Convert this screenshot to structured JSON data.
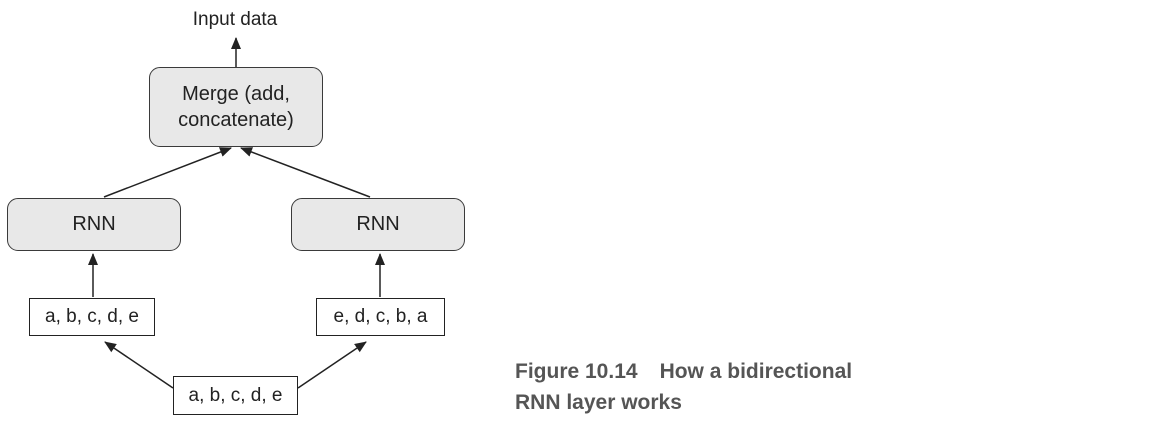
{
  "diagram": {
    "output_label": "Input data",
    "merge_label_line1": "Merge (add,",
    "merge_label_line2": "concatenate)",
    "rnn_left_label": "RNN",
    "rnn_right_label": "RNN",
    "sequence_forward_label": "a, b, c, d, e",
    "sequence_reversed_label": "e, d, c, b, a",
    "sequence_input_label": "a, b, c, d, e"
  },
  "caption": {
    "figure_number": "Figure 10.14",
    "text_line1": "How a bidirectional",
    "text_line2": "RNN layer works"
  },
  "colors": {
    "box_fill": "#e8e8e8",
    "stroke": "#222222",
    "caption_text": "#555555"
  }
}
